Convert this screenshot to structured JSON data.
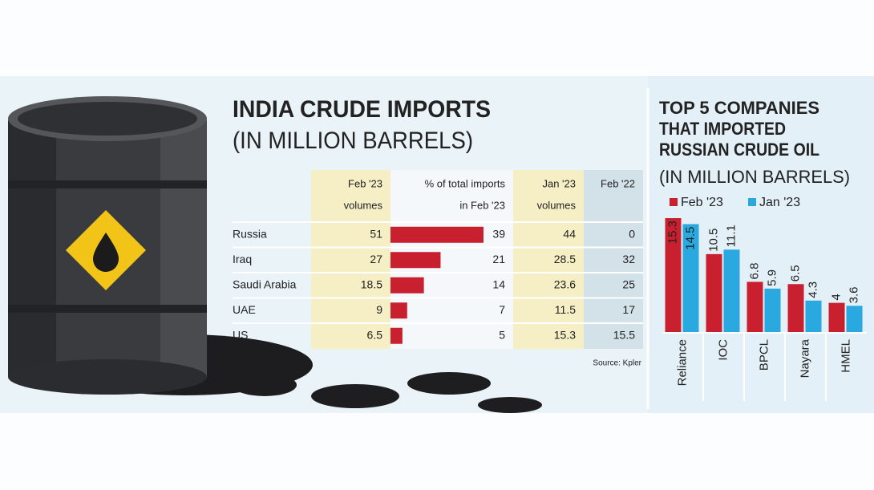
{
  "table": {
    "title": "INDIA CRUDE IMPORTS",
    "subtitle": "(IN MILLION BARRELS)",
    "headers": [
      [
        "Feb '23",
        "volumes"
      ],
      [
        "% of total imports",
        "in Feb '23"
      ],
      [
        "Jan '23",
        "volumes"
      ],
      [
        "Feb '22"
      ]
    ],
    "rows": [
      [
        "Russia",
        51,
        39,
        44,
        0
      ],
      [
        "Iraq",
        27,
        21,
        28.5,
        32
      ],
      [
        "Saudi Arabia",
        18.5,
        14,
        23.6,
        25
      ],
      [
        "UAE",
        9,
        7,
        11.5,
        17
      ],
      [
        "US",
        6.5,
        5,
        15.3,
        15.5
      ]
    ],
    "bar_color": "#c8202f",
    "source": "Source: Kpler"
  },
  "chart_data": {
    "type": "bar",
    "title": [
      "TOP 5 COMPANIES",
      "THAT IMPORTED",
      "RUSSIAN CRUDE OIL"
    ],
    "subtitle": "(IN MILLION BARRELS)",
    "categories": [
      "Reliance",
      "IOC",
      "BPCL",
      "Nayara",
      "HMEL"
    ],
    "series": [
      {
        "name": "Feb '23",
        "color": "#c8202f",
        "values": [
          15.3,
          10.5,
          6.8,
          6.5,
          4
        ]
      },
      {
        "name": "Jan '23",
        "color": "#29a9e0",
        "values": [
          14.5,
          11.1,
          5.9,
          4.3,
          3.6
        ]
      }
    ]
  }
}
